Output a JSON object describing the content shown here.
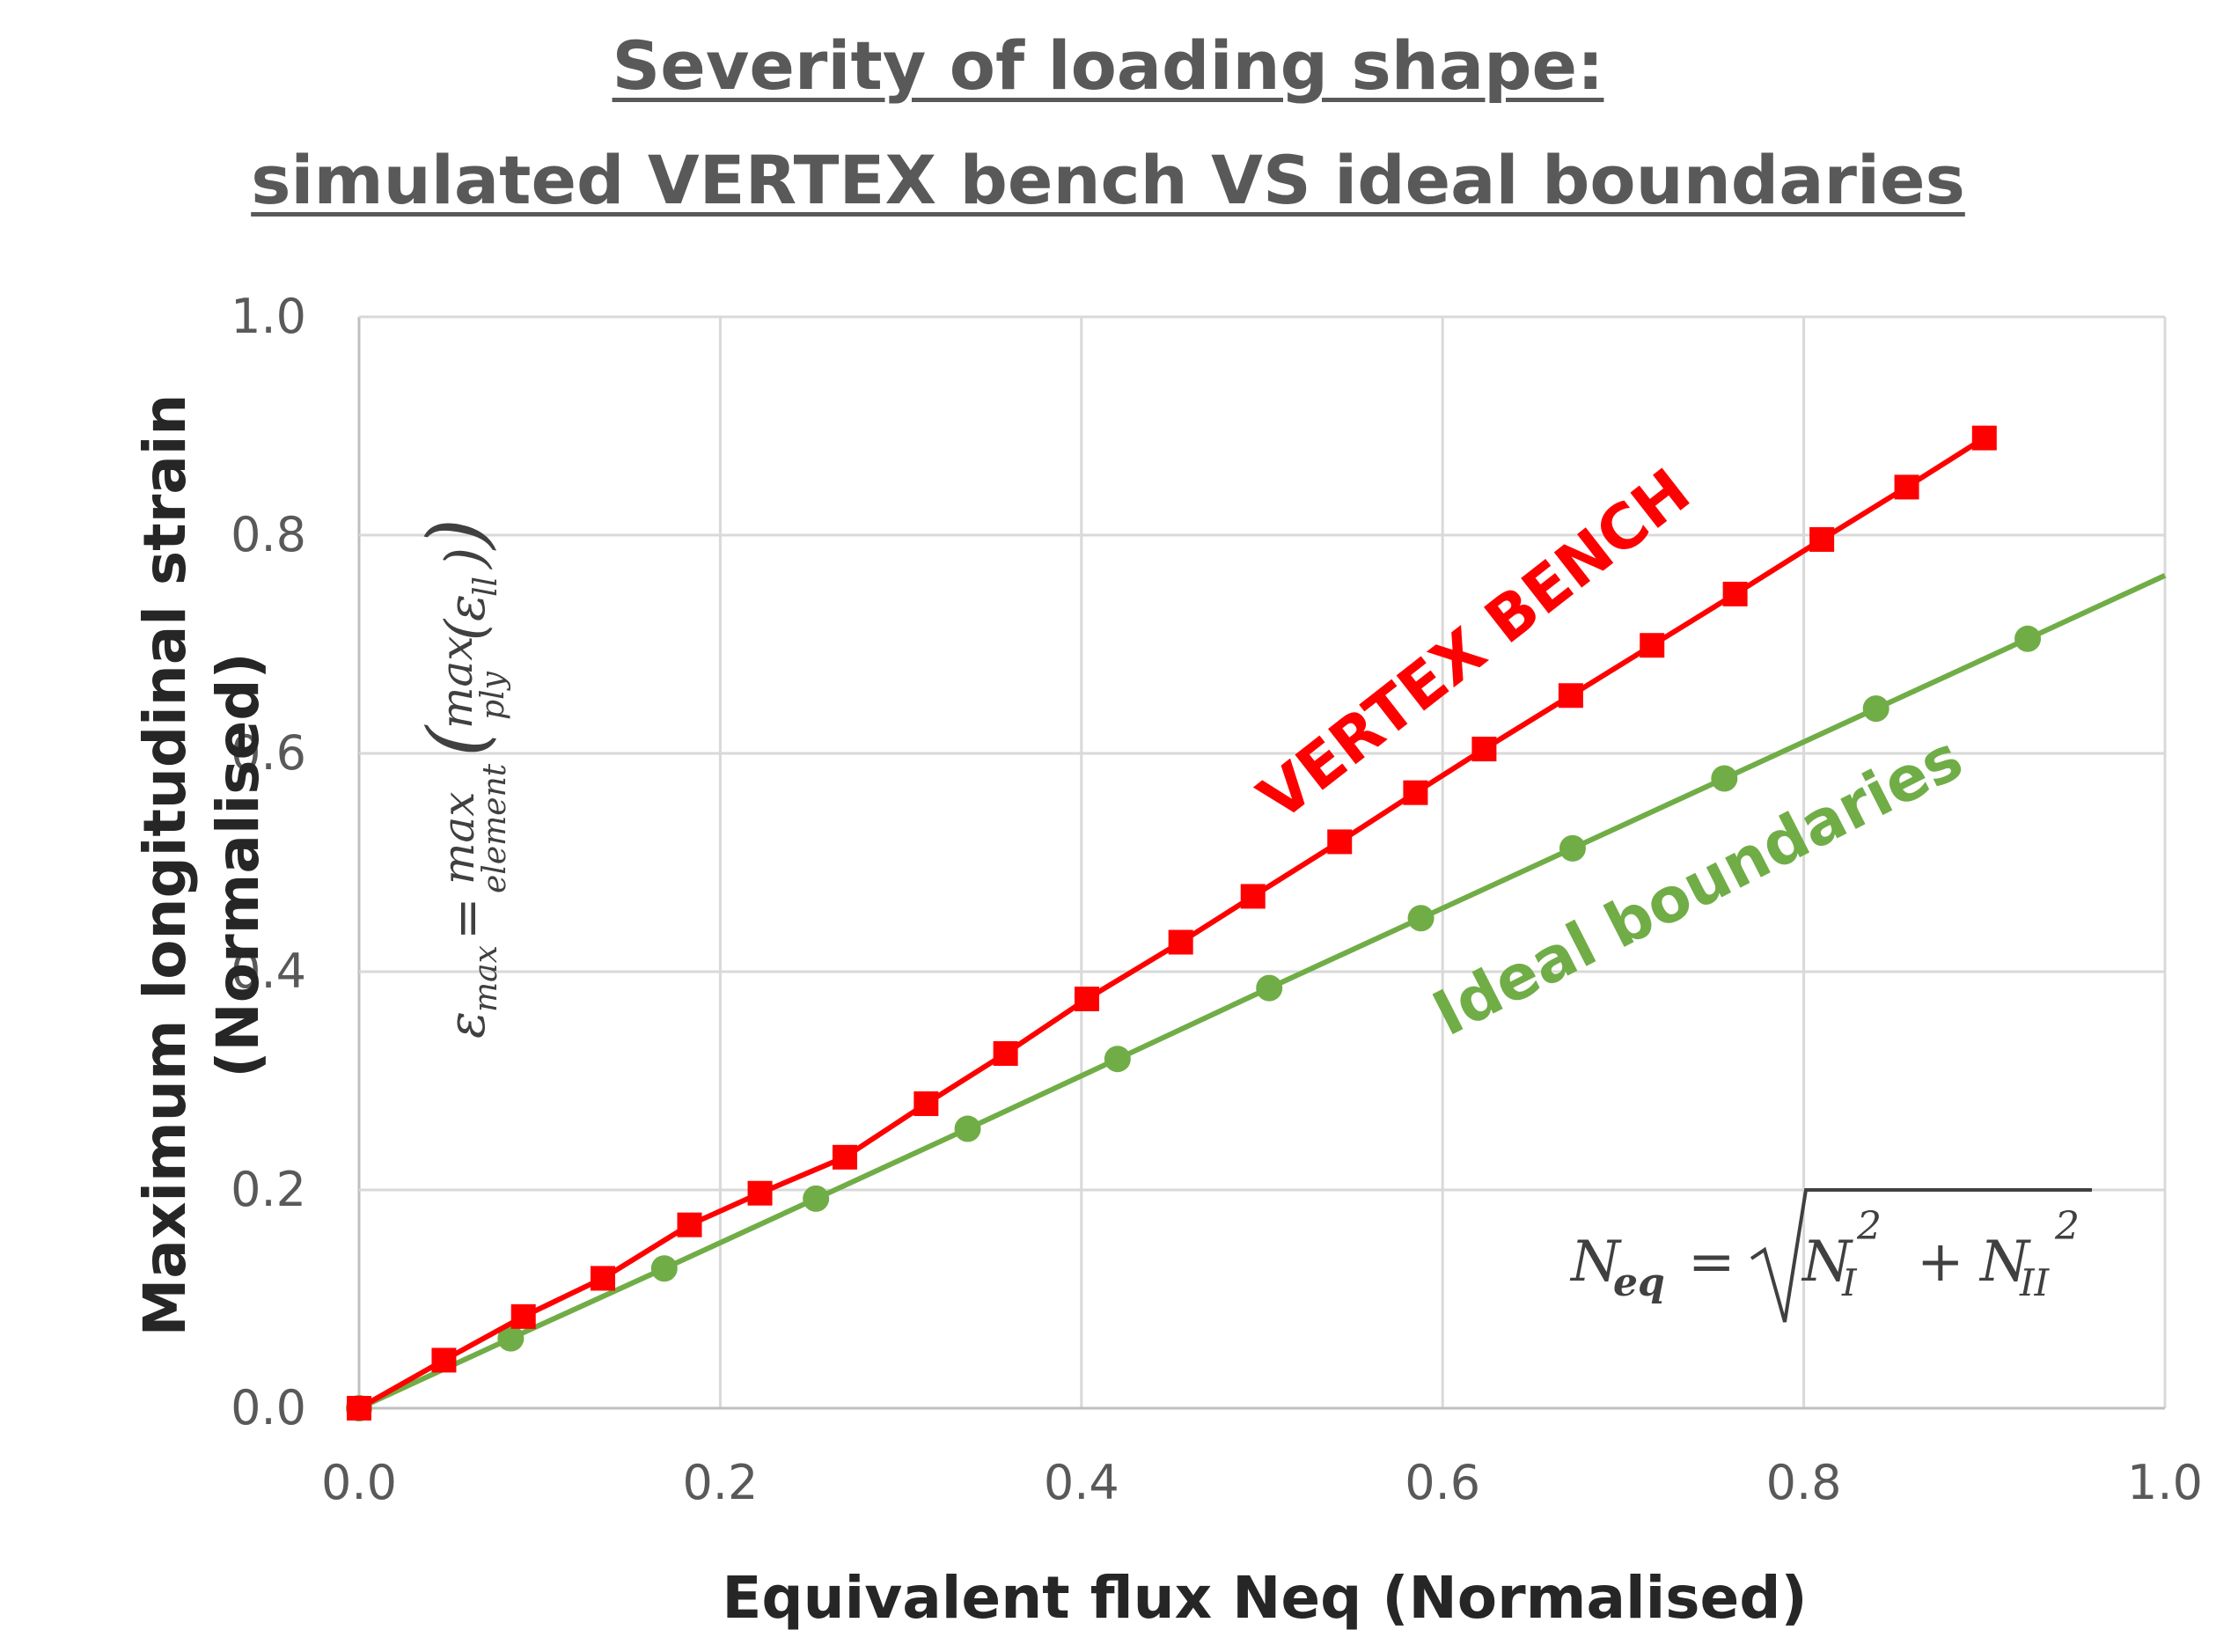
{
  "chart_data": {
    "type": "line",
    "title": "Severity of loading shape:",
    "subtitle": "simulated VERTEX bench VS ideal boundaries",
    "xlabel": "Equivalent flux Neq (Normalised)",
    "ylabel_line1": "Maximum longitudinal strain",
    "ylabel_line2": "(Normalised)",
    "xlim": [
      0.0,
      1.0
    ],
    "ylim": [
      0.0,
      1.0
    ],
    "grid": true,
    "xticks": [
      "0.0",
      "0.2",
      "0.4",
      "0.6",
      "0.8",
      "1.0"
    ],
    "yticks": [
      "0.0",
      "0.2",
      "0.4",
      "0.6",
      "0.8",
      "1.0"
    ],
    "series": [
      {
        "name": "VERTEX BENCH",
        "color": "#ff0000",
        "marker": "square",
        "x": [
          0.0,
          0.047,
          0.091,
          0.135,
          0.183,
          0.222,
          0.269,
          0.314,
          0.358,
          0.403,
          0.455,
          0.495,
          0.543,
          0.585,
          0.623,
          0.671,
          0.716,
          0.762,
          0.81,
          0.857,
          0.9
        ],
        "y": [
          0.0,
          0.044,
          0.084,
          0.119,
          0.168,
          0.197,
          0.23,
          0.279,
          0.325,
          0.375,
          0.427,
          0.469,
          0.519,
          0.564,
          0.604,
          0.653,
          0.699,
          0.746,
          0.796,
          0.844,
          0.889
        ]
      },
      {
        "name": "Ideal boundaries",
        "color": "#70ad47",
        "marker": "circle",
        "x": [
          0.0,
          0.084,
          0.169,
          0.253,
          0.337,
          0.42,
          0.504,
          0.588,
          0.672,
          0.756,
          0.84,
          0.924
        ],
        "y": [
          0.0,
          0.064,
          0.128,
          0.192,
          0.256,
          0.32,
          0.385,
          0.449,
          0.513,
          0.577,
          0.641,
          0.705
        ],
        "trend_end": {
          "x": 1.0,
          "y": 0.763
        }
      }
    ],
    "annotations": {
      "strain_formula_lhs": "ε",
      "strain_formula_lhs_sub": "max",
      "strain_formula_eq": "=",
      "strain_formula_max": "max",
      "strain_formula_max_sub": "element",
      "strain_formula_inner_max": "max",
      "strain_formula_inner_sub": "ply",
      "strain_formula_eps": "ε",
      "strain_formula_eps_sub": "ll",
      "flux_formula_lhs": "N",
      "flux_formula_lhs_sub": "eq",
      "flux_formula_eq": "=",
      "flux_formula_n1": "N",
      "flux_formula_n1_sub": "I",
      "flux_formula_exp": "2",
      "flux_formula_plus": "+",
      "flux_formula_n2": "N",
      "flux_formula_n2_sub": "II"
    }
  },
  "colors": {
    "grid": "#d9d9d9",
    "axis": "#bfbfbf",
    "vertex": "#ff0000",
    "ideal": "#70ad47"
  }
}
